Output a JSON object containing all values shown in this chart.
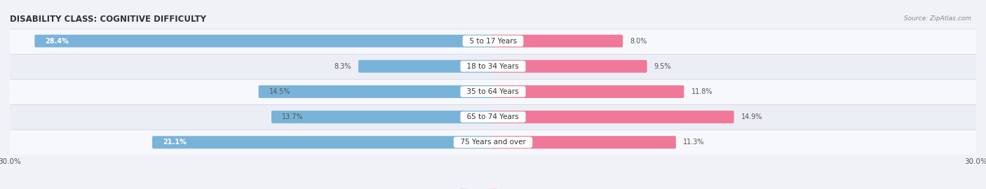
{
  "title": "DISABILITY CLASS: COGNITIVE DIFFICULTY",
  "source_text": "Source: ZipAtlas.com",
  "categories": [
    "5 to 17 Years",
    "18 to 34 Years",
    "35 to 64 Years",
    "65 to 74 Years",
    "75 Years and over"
  ],
  "male_values": [
    28.4,
    8.3,
    14.5,
    13.7,
    21.1
  ],
  "female_values": [
    8.0,
    9.5,
    11.8,
    14.9,
    11.3
  ],
  "male_color": "#7ab3d9",
  "female_color": "#f07898",
  "male_label_color_white": [
    true,
    false,
    false,
    false,
    true
  ],
  "female_label_color_white": [
    false,
    false,
    false,
    false,
    false
  ],
  "max_val": 30.0,
  "row_bg_color_light": "#f7f8fc",
  "row_bg_color_dark": "#eceef5",
  "row_separator_color": "#d0d3e0",
  "title_fontsize": 8.5,
  "label_fontsize": 7.0,
  "axis_label_fontsize": 7.5,
  "category_fontsize": 7.5,
  "legend_fontsize": 7.5,
  "source_fontsize": 6.5
}
